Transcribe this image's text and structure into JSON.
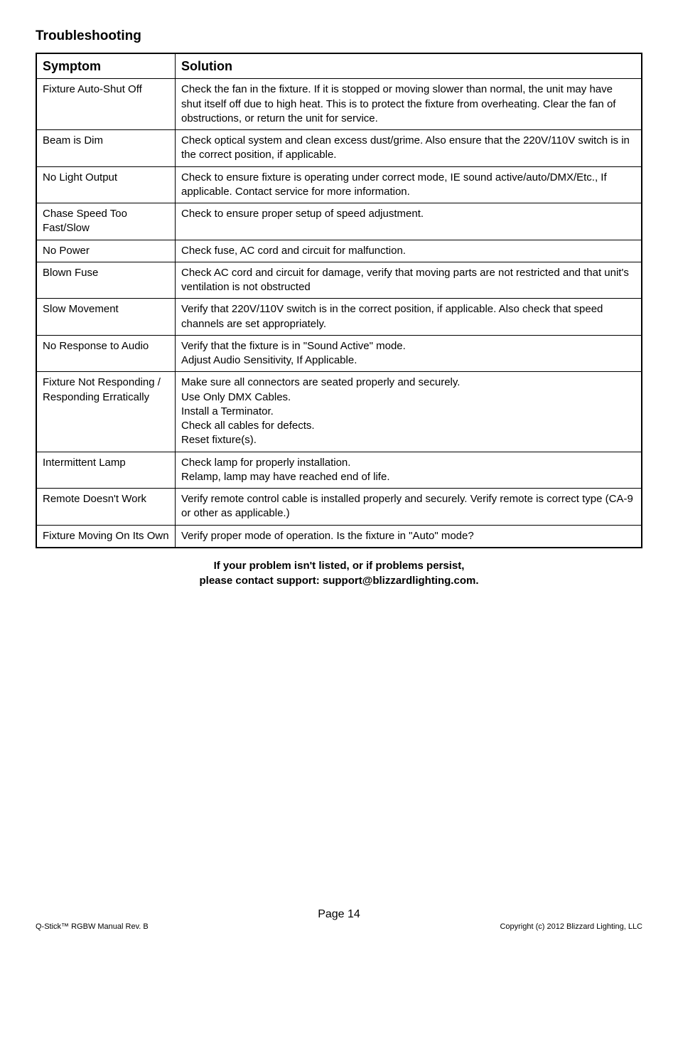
{
  "title": "Troubleshooting",
  "headers": {
    "symptom": "Symptom",
    "solution": "Solution"
  },
  "rows": [
    {
      "symptom": "Fixture Auto-Shut Off",
      "solution": "Check the fan in the fixture.  If it is stopped or moving slower than normal, the unit may have shut itself off due to high heat.  This is to protect the fixture from overheating.  Clear the fan of obstructions, or return the unit for service."
    },
    {
      "symptom": "Beam is Dim",
      "solution": "Check optical system and clean excess dust/grime.  Also ensure that the 220V/110V switch is in the correct position, if applicable."
    },
    {
      "symptom": "No Light Output",
      "solution": "Check to ensure fixture is operating under correct mode, IE sound active/auto/DMX/Etc., If applicable.  Contact service for more information."
    },
    {
      "symptom": "Chase Speed Too Fast/Slow",
      "solution": "Check to ensure proper setup of speed adjustment."
    },
    {
      "symptom": "No Power",
      "solution": "Check fuse, AC cord and circuit for malfunction."
    },
    {
      "symptom": "Blown Fuse",
      "solution": "Check AC cord and circuit for damage, verify that moving parts are not restricted and that unit's ventilation is not obstructed"
    },
    {
      "symptom": "Slow Movement",
      "solution": "Verify that 220V/110V switch is in the correct position, if applicable.  Also check that speed channels are set appropriately."
    },
    {
      "symptom": "No Response to Audio",
      "solution": "Verify that the fixture is in \"Sound Active\" mode.\nAdjust Audio Sensitivity, If Applicable."
    },
    {
      "symptom": "Fixture Not Responding / Responding Erratically",
      "solution": "Make sure all connectors are seated properly and securely.\nUse Only DMX Cables.\nInstall a Terminator.\nCheck all cables for defects.\nReset fixture(s)."
    },
    {
      "symptom": "Intermittent Lamp",
      "solution": "Check lamp for properly installation.\nRelamp, lamp may have reached end of life."
    },
    {
      "symptom": "Remote Doesn't Work",
      "solution": "Verify remote control cable is installed properly and securely.  Verify remote is correct type (CA-9 or other as applicable.)"
    },
    {
      "symptom": "Fixture Moving On Its Own",
      "solution": "Verify proper mode of operation.  Is the fixture in \"Auto\" mode?"
    }
  ],
  "footer": {
    "line1": "If your problem isn't listed, or if problems persist,",
    "line2": "please contact support:  support@blizzardlighting.com."
  },
  "page": {
    "center": "Page 14",
    "left": "Q-Stick™ RGBW Manual Rev. B",
    "right": "Copyright (c) 2012 Blizzard Lighting, LLC"
  }
}
